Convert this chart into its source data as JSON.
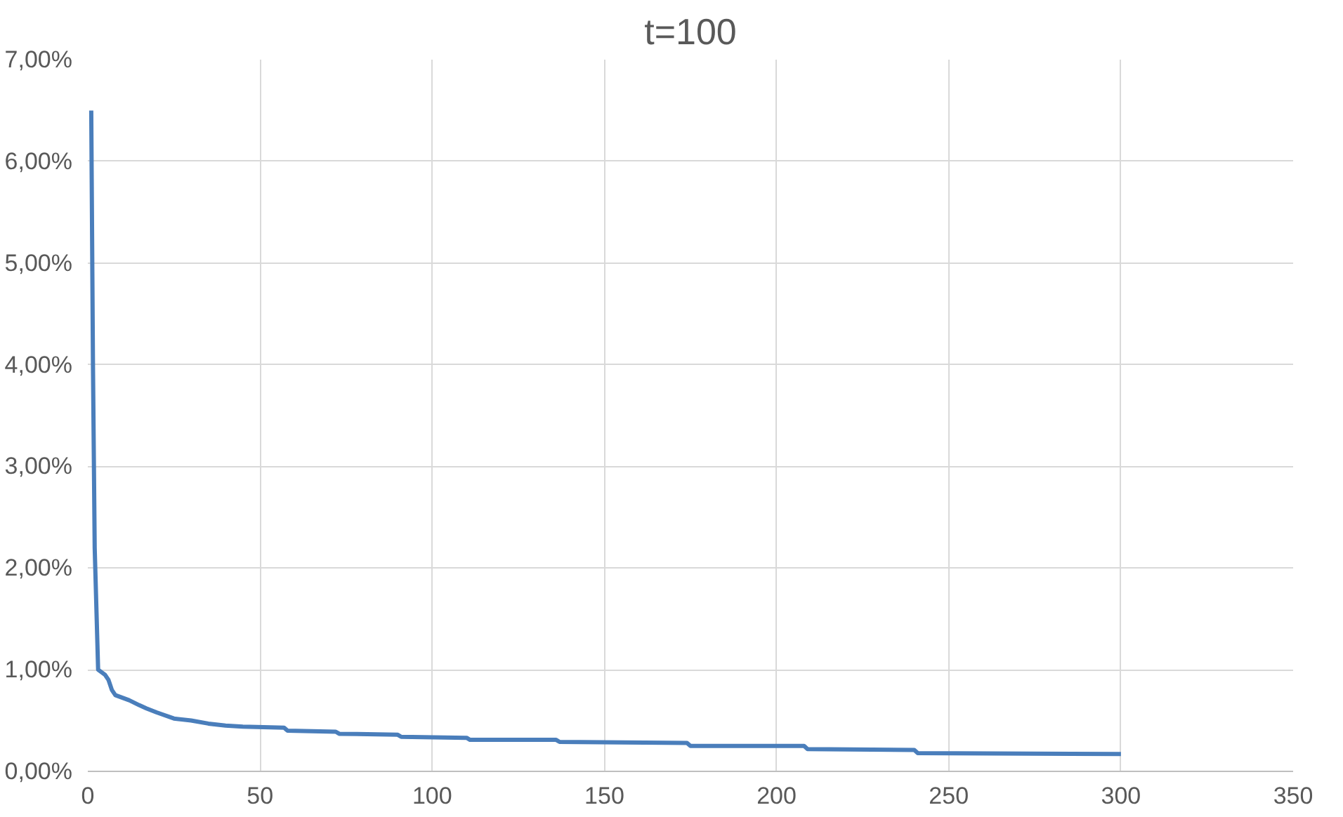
{
  "chart_data": {
    "type": "line",
    "title": "t=100",
    "series": [
      {
        "color": "#4a7ebb",
        "x": [
          1,
          1.5,
          2,
          3,
          5,
          6,
          7,
          8,
          12,
          15,
          17,
          20,
          25,
          30,
          35,
          40,
          45,
          57,
          58,
          72,
          73,
          90,
          91,
          110,
          111,
          136,
          137,
          174,
          175,
          208,
          209,
          240,
          241,
          300
        ],
        "values": [
          6.5,
          4.0,
          2.2,
          1.0,
          0.95,
          0.9,
          0.8,
          0.75,
          0.7,
          0.65,
          0.62,
          0.58,
          0.52,
          0.5,
          0.47,
          0.45,
          0.44,
          0.43,
          0.4,
          0.39,
          0.37,
          0.36,
          0.34,
          0.33,
          0.31,
          0.31,
          0.29,
          0.28,
          0.25,
          0.25,
          0.22,
          0.21,
          0.18,
          0.17
        ]
      }
    ],
    "xlim": [
      0,
      350
    ],
    "xticks": [
      0,
      50,
      100,
      150,
      200,
      250,
      300,
      350
    ],
    "ylim": [
      0,
      7
    ],
    "yticks": [
      {
        "value": 0,
        "label": "0,00%"
      },
      {
        "value": 1,
        "label": "1,00%"
      },
      {
        "value": 2,
        "label": "2,00%"
      },
      {
        "value": 3,
        "label": "3,00%"
      },
      {
        "value": 4,
        "label": "4,00%"
      },
      {
        "value": 5,
        "label": "5,00%"
      },
      {
        "value": 6,
        "label": "6,00%"
      },
      {
        "value": 7,
        "label": "7,00%"
      }
    ],
    "grid": true
  }
}
